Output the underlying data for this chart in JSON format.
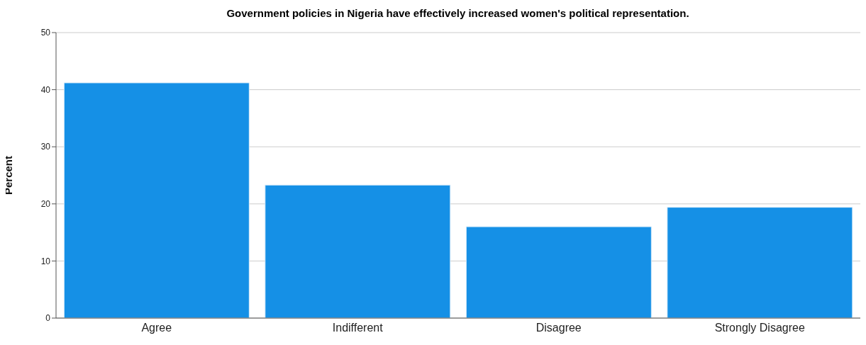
{
  "chart_data": {
    "type": "bar",
    "title": "Government policies in Nigeria have effectively increased women's political representation.",
    "ylabel": "Percent",
    "categories": [
      "Agree",
      "Indifferent",
      "Disagree",
      "Strongly Disagree"
    ],
    "values": [
      41.2,
      23.3,
      16.0,
      19.4
    ],
    "color": "#1590e6",
    "ylim": [
      0,
      50
    ],
    "yticks": [
      0,
      10,
      20,
      30,
      40,
      50
    ],
    "grid": "y"
  }
}
